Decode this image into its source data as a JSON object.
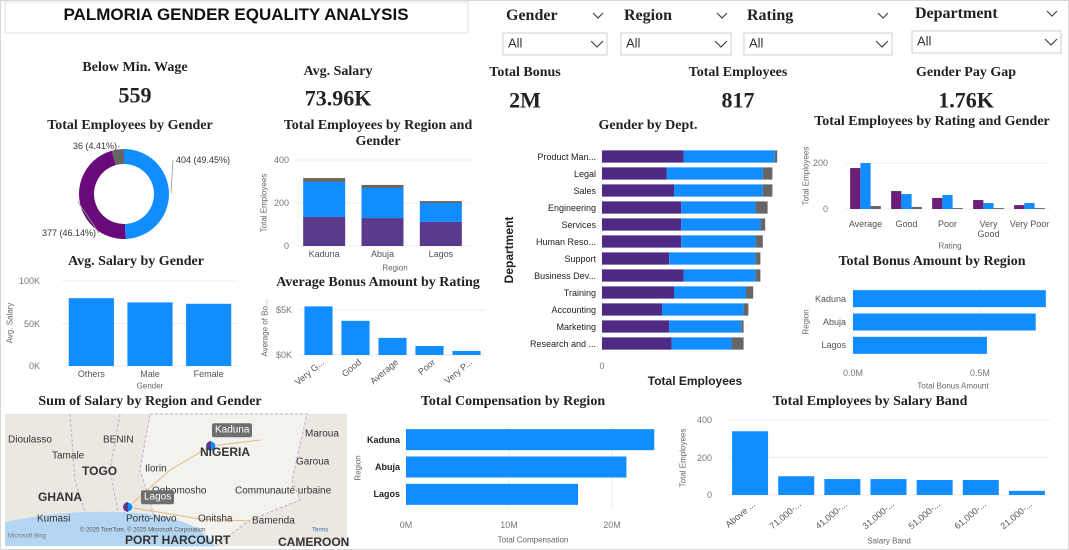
{
  "header": {
    "title": "PALMORIA GENDER EQUALITY ANALYSIS"
  },
  "filters": [
    {
      "label": "Gender",
      "value": "All"
    },
    {
      "label": "Region",
      "value": "All"
    },
    {
      "label": "Rating",
      "value": "All"
    },
    {
      "label": "Department",
      "value": "All"
    }
  ],
  "kpis": [
    {
      "label": "Below Min. Wage",
      "value": "559"
    },
    {
      "label": "Avg. Salary",
      "value": "73.96K"
    },
    {
      "label": "Total Bonus",
      "value": "2M"
    },
    {
      "label": "Total Employees",
      "value": "817"
    },
    {
      "label": "Gender Pay Gap",
      "value": "1.76K"
    }
  ],
  "chart_data": [
    {
      "type": "donut",
      "title": "Total Employees by Gender",
      "values": [
        404,
        377,
        36
      ],
      "value_labels": [
        "404 (49.45%)",
        "377 (46.14%)",
        "36 (4.41%)"
      ],
      "colors": [
        "#118dff",
        "#6a0a7a",
        "#666666"
      ]
    },
    {
      "type": "bar",
      "stacked": true,
      "title": "Total Employees by Region and Gender",
      "x_label": "Region",
      "y_label": "Total Employees",
      "categories": [
        "Kaduna",
        "Abuja",
        "Lagos"
      ],
      "series": [
        {
          "color": "#5b3a8e",
          "values": [
            135,
            130,
            112
          ]
        },
        {
          "color": "#118dff",
          "values": [
            163,
            140,
            88
          ]
        },
        {
          "color": "#666666",
          "values": [
            18,
            14,
            9
          ]
        }
      ],
      "ylim": [
        0,
        400
      ],
      "yticks": [
        0,
        200,
        400
      ]
    },
    {
      "type": "bar",
      "stacked": true,
      "orientation": "horizontal",
      "title": "Gender by Dept.",
      "x_label": "Total Employees",
      "y_label": "Department",
      "categories": [
        "Product Man...",
        "Legal",
        "Sales",
        "Engineering",
        "Services",
        "Human Reso...",
        "Support",
        "Business Dev...",
        "Training",
        "Accounting",
        "Marketing",
        "Research and ..."
      ],
      "series": [
        {
          "color": "#4e2a84",
          "values": [
            34,
            27,
            30,
            33,
            33,
            33,
            28,
            34,
            30,
            25,
            28,
            29
          ]
        },
        {
          "color": "#118dff",
          "values": [
            38,
            40,
            37,
            31,
            33,
            31,
            36,
            30,
            30,
            34,
            30,
            25
          ]
        },
        {
          "color": "#666666",
          "values": [
            1,
            4,
            4,
            5,
            2,
            3,
            2,
            2,
            3,
            2,
            1,
            5
          ]
        }
      ],
      "xlim": [
        0,
        75
      ],
      "xticks": [
        0
      ]
    },
    {
      "type": "bar",
      "title": "Total Employees by Rating and Gender",
      "x_label": "Rating",
      "y_label": "Total Employees",
      "categories": [
        "Average",
        "Good",
        "Poor",
        "Very Good",
        "Very Poor"
      ],
      "series": [
        {
          "color": "#6b1f78",
          "values": [
            178,
            78,
            48,
            39,
            17
          ]
        },
        {
          "color": "#118dff",
          "values": [
            200,
            65,
            61,
            26,
            26
          ]
        },
        {
          "color": "#666666",
          "values": [
            13,
            9,
            4,
            4,
            4
          ]
        }
      ],
      "ylim": [
        0,
        250
      ],
      "yticks": [
        0,
        200
      ]
    },
    {
      "type": "bar",
      "title": "Avg. Salary by Gender",
      "x_label": "Gender",
      "y_label": "Avg. Salary",
      "categories": [
        "Others",
        "Male",
        "Female"
      ],
      "values": [
        79800,
        74800,
        73200
      ],
      "color": "#118dff",
      "ylim": [
        0,
        100000
      ],
      "yticks": [
        {
          "value": 0,
          "label": "0K"
        },
        {
          "value": 50000,
          "label": "50K"
        },
        {
          "value": 100000,
          "label": "100K"
        }
      ]
    },
    {
      "type": "bar",
      "title": "Average Bonus Amount by Rating",
      "y_label": "Average of Bo...",
      "categories": [
        "Very G...",
        "Good",
        "Average",
        "Poor",
        "Very P..."
      ],
      "values": [
        5400,
        3800,
        1900,
        1000,
        450
      ],
      "color": "#118dff",
      "ylim": [
        0,
        6000
      ],
      "yticks": [
        {
          "value": 0,
          "label": "$0K"
        },
        {
          "value": 5000,
          "label": "$5K"
        }
      ]
    },
    {
      "type": "bar",
      "orientation": "horizontal",
      "title": "Total Bonus Amount by Region",
      "x_label": "Total Bonus Amount",
      "y_label": "Region",
      "categories": [
        "Kaduna",
        "Abuja",
        "Lagos"
      ],
      "values": [
        760000,
        720000,
        528000
      ],
      "color": "#118dff",
      "xlim": [
        0,
        800000
      ],
      "xticks": [
        {
          "value": 0,
          "label": "0.0M"
        },
        {
          "value": 500000,
          "label": "0.5M"
        }
      ]
    },
    {
      "type": "map",
      "title": "Sum of Salary by Region and Gender",
      "labels": [
        "Dioulasso",
        "BENIN",
        "Kaduna",
        "NIGERIA",
        "Maroua",
        "Tamale",
        "TOGO",
        "Ilorin",
        "Garoua",
        "Ogbomosho",
        "GHANA",
        "Lagos",
        "Communauté urbaine",
        "Porto-Novo",
        "Onitsha",
        "Bamenda",
        "Kumasi",
        "PORT HARCOURT",
        "CAMEROON"
      ],
      "attribution": "© 2025 TomTom, © 2025 Microsoft Corporation",
      "terms": "Terms",
      "provider": "Microsoft Bing"
    },
    {
      "type": "bar",
      "orientation": "horizontal",
      "title": "Total Compensation by Region",
      "x_label": "Total Compensation",
      "y_label": "Region",
      "categories": [
        "Kaduna",
        "Abuja",
        "Lagos"
      ],
      "values": [
        24100000,
        21400000,
        16700000
      ],
      "color": "#118dff",
      "xlim": [
        0,
        25000000
      ],
      "xticks": [
        {
          "value": 0,
          "label": "0M"
        },
        {
          "value": 10000000,
          "label": "10M"
        },
        {
          "value": 20000000,
          "label": "20M"
        }
      ]
    },
    {
      "type": "bar",
      "title": "Total Employees by Salary Band",
      "x_label": "Salary Band",
      "y_label": "Total Employees",
      "categories": [
        "Above ...",
        "71,000-...",
        "41,000-...",
        "31,000-...",
        "51,000-...",
        "61,000-...",
        "21,000-..."
      ],
      "values": [
        340,
        100,
        85,
        85,
        80,
        80,
        22
      ],
      "color": "#118dff",
      "ylim": [
        0,
        400
      ],
      "yticks": [
        0,
        200,
        400
      ]
    }
  ]
}
